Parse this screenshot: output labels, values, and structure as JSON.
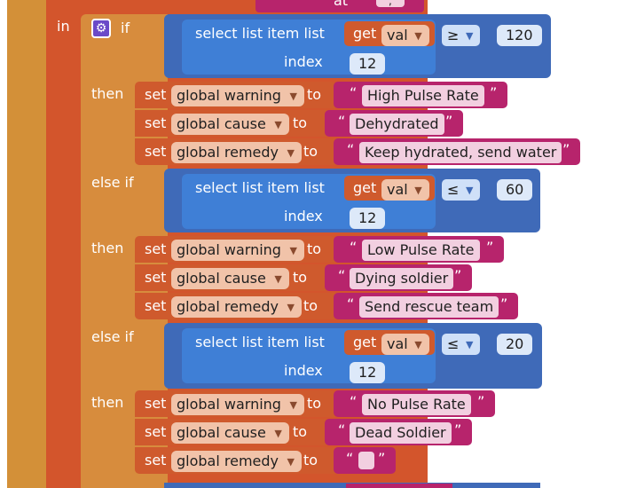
{
  "top": {
    "at_label": "at",
    "top_value": ";"
  },
  "labels": {
    "in": "in",
    "if": "if",
    "then": "then",
    "else_if": "else if",
    "set": "set",
    "to": "to"
  },
  "select_block": {
    "label": "select list item  list",
    "index_label": "index",
    "get": "get"
  },
  "icons": {
    "gear": "gear-icon",
    "dropdown": "chevron-down-icon"
  },
  "conditions": [
    {
      "var": "val",
      "op": "≥",
      "value": "120",
      "index": "12"
    },
    {
      "var": "val",
      "op": "≤",
      "value": "60",
      "index": "12"
    },
    {
      "var": "val",
      "op": "≤",
      "value": "20",
      "index": "12"
    }
  ],
  "branches": [
    [
      {
        "var": "global warning",
        "text": "High Pulse Rate"
      },
      {
        "var": "global cause",
        "text": "Dehydrated"
      },
      {
        "var": "global remedy",
        "text": "Keep hydrated, send water"
      }
    ],
    [
      {
        "var": "global warning",
        "text": "Low Pulse Rate"
      },
      {
        "var": "global cause",
        "text": "Dying soldier"
      },
      {
        "var": "global remedy",
        "text": "Send rescue team"
      }
    ],
    [
      {
        "var": "global warning",
        "text": "No Pulse Rate"
      },
      {
        "var": "global cause",
        "text": "Dead Soldier"
      },
      {
        "var": "global remedy",
        "text": ""
      }
    ]
  ],
  "colors": {
    "procedure": "#d39038",
    "variable": "#d3552c",
    "control": "#d78c3d",
    "list": "#3f7fd6",
    "math": "#3f6ab8",
    "text": "#b7246c"
  }
}
